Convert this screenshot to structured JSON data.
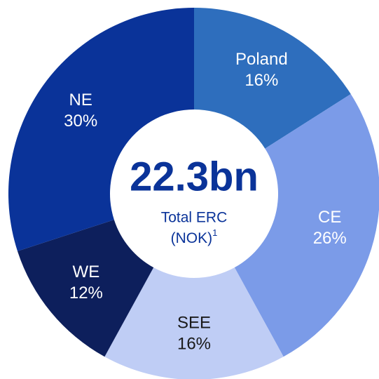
{
  "chart_data": {
    "type": "donut",
    "center_value": "22.3bn",
    "center_lines": [
      "Total ERC",
      "(NOK)"
    ],
    "center_footnote": "1",
    "categories": [
      "Poland",
      "CE",
      "SEE",
      "WE",
      "NE"
    ],
    "values": [
      16,
      26,
      16,
      12,
      30
    ],
    "value_labels": [
      "16%",
      "26%",
      "16%",
      "12%",
      "30%"
    ],
    "colors": [
      "#2e6ebd",
      "#7b9be8",
      "#bfcdf5",
      "#0d1f5c",
      "#0a3399"
    ],
    "label_colors": [
      "#ffffff",
      "#ffffff",
      "#1a1a1a",
      "#ffffff",
      "#ffffff"
    ]
  }
}
